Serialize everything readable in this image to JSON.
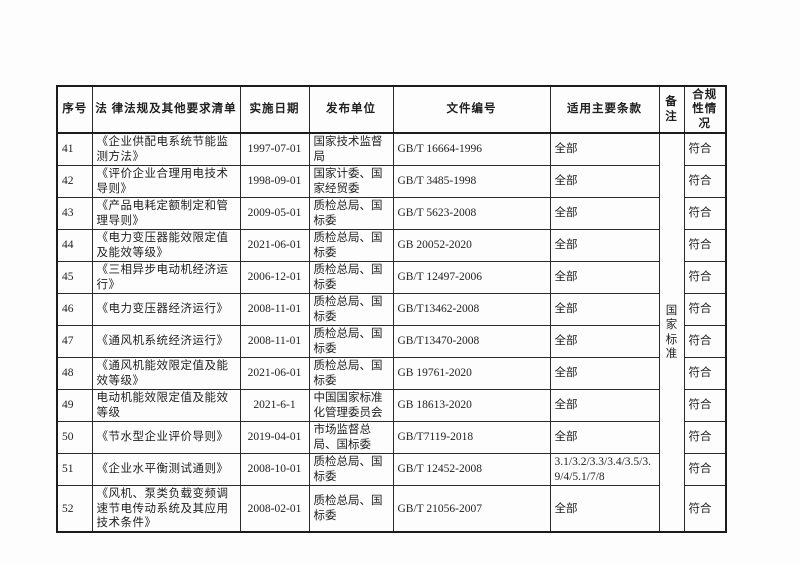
{
  "colors": {
    "page_bg": "#fdfdfd",
    "border": "#1c1c1c",
    "text": "#1f1f1f"
  },
  "table": {
    "headers": {
      "index": "序号",
      "name": "法 律法规及其他要求清单",
      "date": "实施日期",
      "publisher": "发布单位",
      "doc_no": "文件编号",
      "clauses": "适用主要条款",
      "remark": "备注",
      "compliance": "合规性情况"
    },
    "remark_merged": "国家标准",
    "rows": [
      {
        "index": "41",
        "name": "《企业供配电系统节能监测方法》",
        "date": "1997-07-01",
        "publisher": "国家技术监督局",
        "doc_no": "GB/T 16664-1996",
        "clauses": "全部",
        "compliance": "符合"
      },
      {
        "index": "42",
        "name": "《评价企业合理用电技术导则》",
        "date": "1998-09-01",
        "publisher": "国家计委、国家经贸委",
        "doc_no": "GB/T 3485-1998",
        "clauses": "全部",
        "compliance": "符合"
      },
      {
        "index": "43",
        "name": "《产品电耗定额制定和管理导则》",
        "date": "2009-05-01",
        "publisher": "质检总局、国标委",
        "doc_no": "GB/T 5623-2008",
        "clauses": "全部",
        "compliance": "符合"
      },
      {
        "index": "44",
        "name": "《电力变压器能效限定值及能效等级》",
        "date": "2021-06-01",
        "publisher": "质检总局、国标委",
        "doc_no": "GB 20052-2020",
        "clauses": "全部",
        "compliance": "符合"
      },
      {
        "index": "45",
        "name": "《三相异步电动机经济运行》",
        "date": "2006-12-01",
        "publisher": "质检总局、国标委",
        "doc_no": "GB/T 12497-2006",
        "clauses": "全部",
        "compliance": "符合"
      },
      {
        "index": "46",
        "name": "《电力变压器经济运行》",
        "date": "2008-11-01",
        "publisher": "质检总局、国标委",
        "doc_no": "GB/T13462-2008",
        "clauses": "全部",
        "compliance": "符合"
      },
      {
        "index": "47",
        "name": "《通风机系统经济运行》",
        "date": "2008-11-01",
        "publisher": "质检总局、国标委",
        "doc_no": "GB/T13470-2008",
        "clauses": "全部",
        "compliance": "符合"
      },
      {
        "index": "48",
        "name": "《通风机能效限定值及能效等级》",
        "date": "2021-06-01",
        "publisher": "质检总局、国标委",
        "doc_no": "GB 19761-2020",
        "clauses": "全部",
        "compliance": "符合"
      },
      {
        "index": "49",
        "name": "电动机能效限定值及能效等级",
        "date": "2021-6-1",
        "publisher": "中国国家标准化管理委员会",
        "doc_no": "GB 18613-2020",
        "clauses": "全部",
        "compliance": "符合"
      },
      {
        "index": "50",
        "name": "《节水型企业评价导则》",
        "date": "2019-04-01",
        "publisher": "市场监督总局、国标委",
        "doc_no": "GB/T7119-2018",
        "clauses": "全部",
        "compliance": "符合"
      },
      {
        "index": "51",
        "name": "《企业水平衡测试通则》",
        "date": "2008-10-01",
        "publisher": "质检总局、国标委",
        "doc_no": "GB/T 12452-2008",
        "clauses": "3.1/3.2/3.3/3.4/3.5/3.9/4/5.1/7/8",
        "compliance": "符合"
      },
      {
        "index": "52",
        "name": "《风机、泵类负载变频调速节电传动系统及其应用技术条件》",
        "date": "2008-02-01",
        "publisher": "质检总局、国标委",
        "doc_no": "GB/T 21056-2007",
        "clauses": "全部",
        "compliance": "符合"
      }
    ]
  }
}
